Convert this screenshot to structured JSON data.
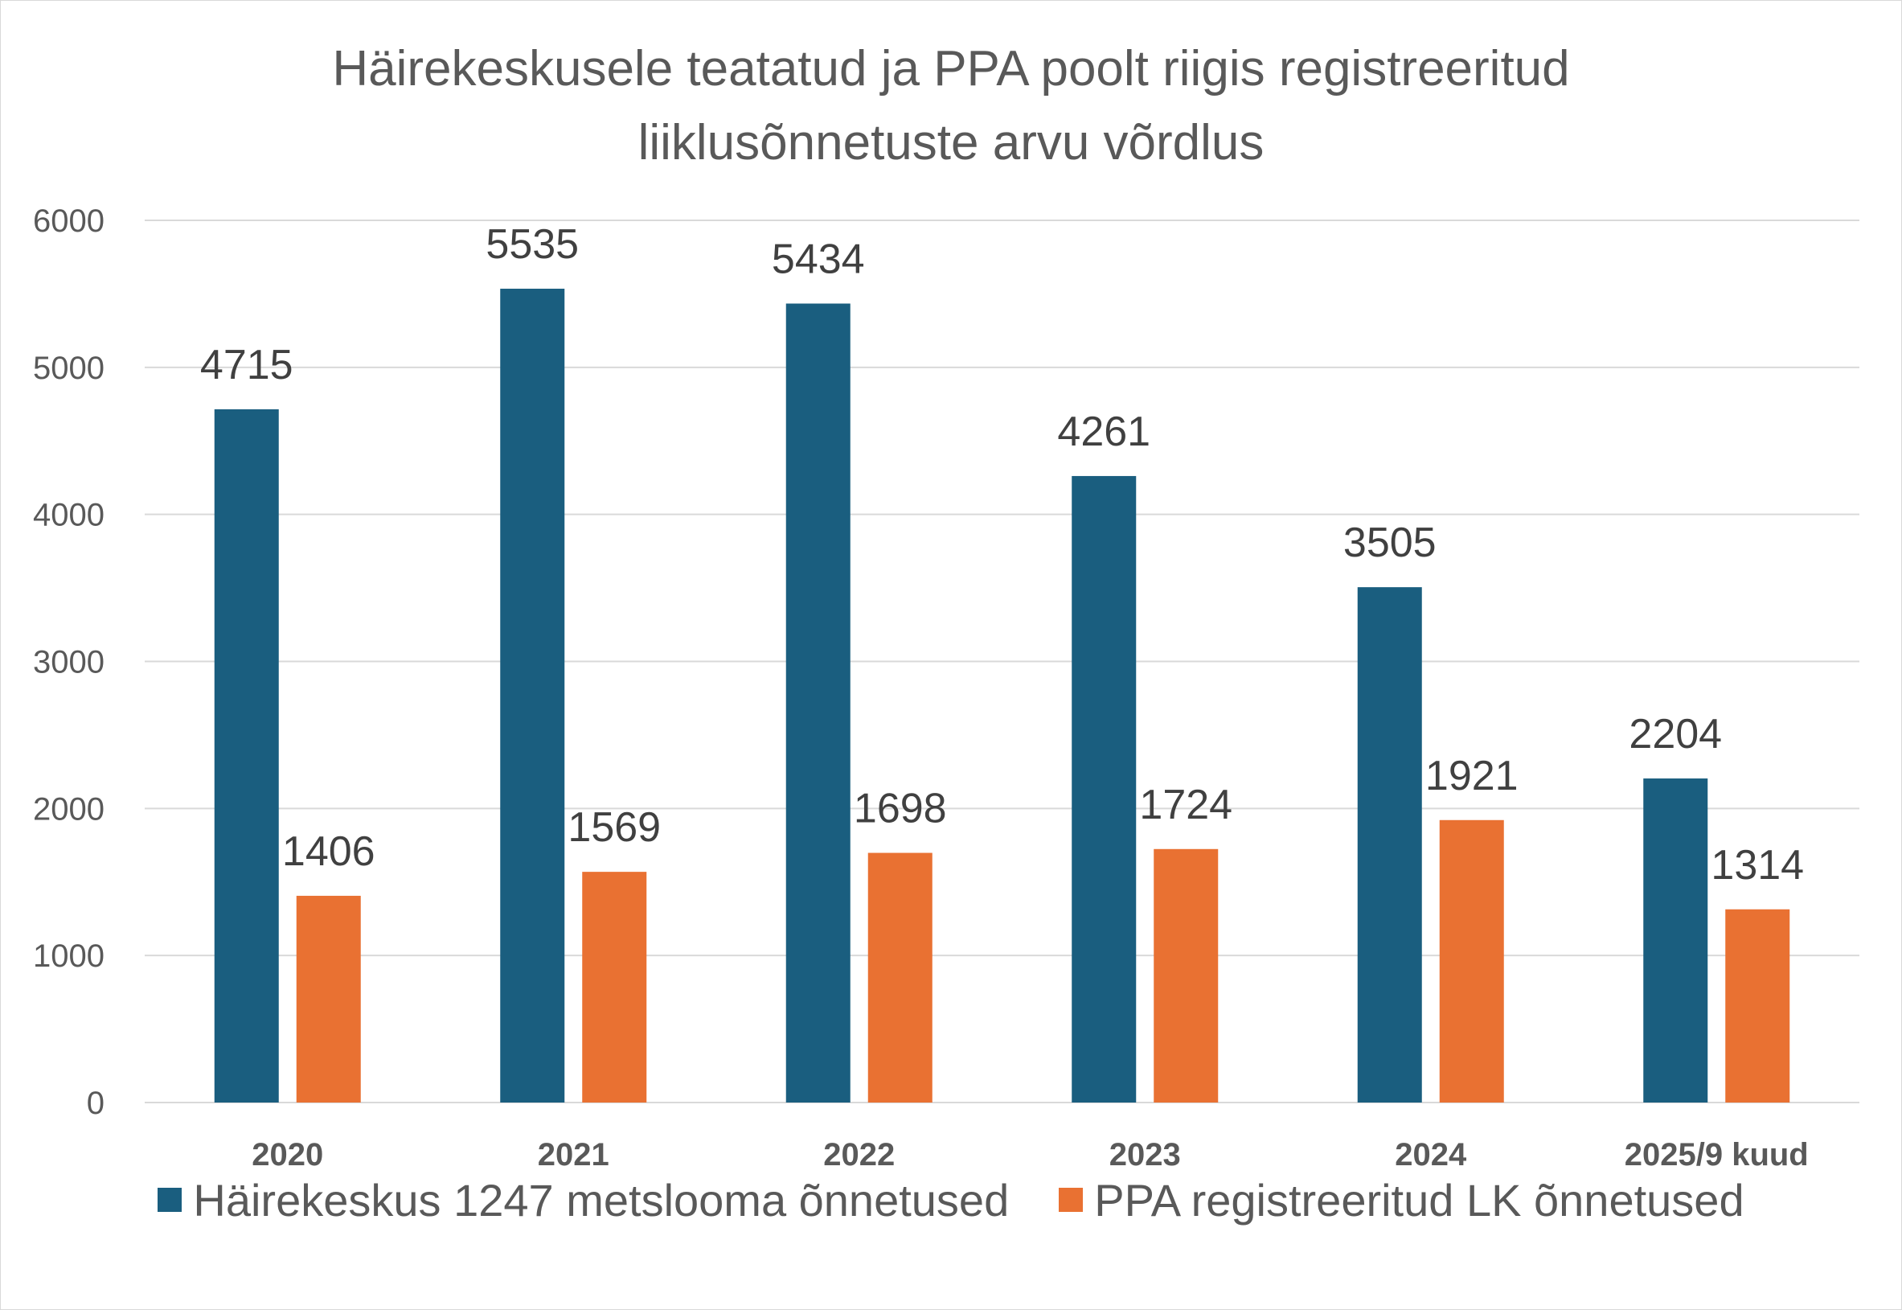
{
  "chart_data": {
    "type": "bar",
    "title_lines": [
      "Häirekeskusele teatatud ja PPA poolt riigis registreeritud",
      "liiklusõnnetuste arvu võrdlus"
    ],
    "categories": [
      "2020",
      "2021",
      "2022",
      "2023",
      "2024",
      "2025/9 kuud"
    ],
    "series": [
      {
        "name": "Häirekeskus 1247 metslooma õnnetused",
        "color": "#1a5e7f",
        "values": [
          4715,
          5535,
          5434,
          4261,
          3505,
          2204
        ]
      },
      {
        "name": "PPA registreeritud LK õnnetused",
        "color": "#e97132",
        "values": [
          1406,
          1569,
          1698,
          1724,
          1921,
          1314
        ]
      }
    ],
    "ylim": [
      0,
      6000
    ],
    "yticks": [
      0,
      1000,
      2000,
      3000,
      4000,
      5000,
      6000
    ],
    "grid": true,
    "legend": "bottom",
    "xlabel": "",
    "ylabel": ""
  }
}
